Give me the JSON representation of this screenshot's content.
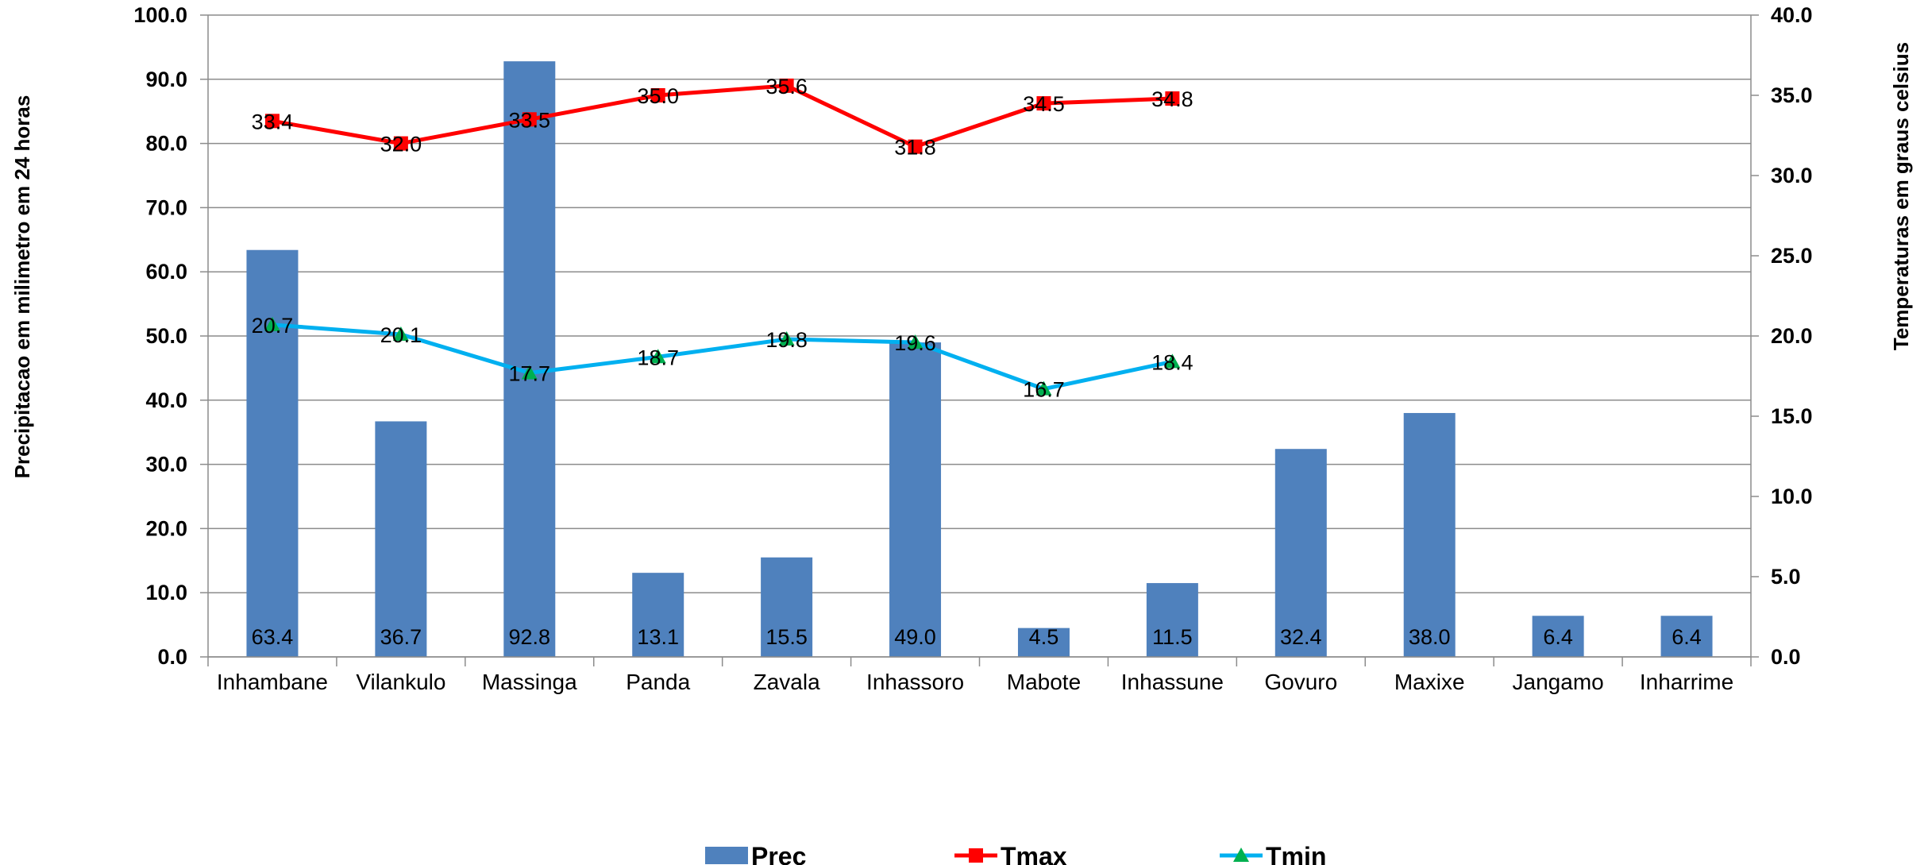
{
  "chart_data": {
    "type": "bar",
    "categories": [
      "Inhambane",
      "Vilankulo",
      "Massinga",
      "Panda",
      "Zavala",
      "Inhassoro",
      "Mabote",
      "Inhassune",
      "Govuro",
      "Maxixe",
      "Jangamo",
      "Inharrime"
    ],
    "series": [
      {
        "name": "Prec",
        "type": "bar",
        "axis": "left",
        "color": "#4F81BD",
        "values": [
          63.4,
          36.7,
          92.8,
          13.1,
          15.5,
          49.0,
          4.5,
          11.5,
          32.4,
          38.0,
          6.4,
          6.4
        ],
        "labels": [
          "63.4",
          "36.7",
          "92.8",
          "13.1",
          "15.5",
          "49.0",
          "4.5",
          "11.5",
          "32.4",
          "38.0",
          "6.4",
          "6.4"
        ]
      },
      {
        "name": "Tmax",
        "type": "line",
        "axis": "right",
        "color": "#FF0000",
        "marker": "square",
        "marker_color": "#FF0000",
        "values": [
          33.4,
          32.0,
          33.5,
          35.0,
          35.6,
          31.8,
          34.5,
          34.8,
          null,
          null,
          null,
          null
        ],
        "labels": [
          "33.4",
          "32.0",
          "33.5",
          "35.0",
          "35.6",
          "31.8",
          "34.5",
          "34.8",
          null,
          null,
          null,
          null
        ]
      },
      {
        "name": "Tmin",
        "type": "line",
        "axis": "right",
        "color": "#00B0F0",
        "marker": "triangle",
        "marker_color": "#00B050",
        "values": [
          20.7,
          20.1,
          17.7,
          18.7,
          19.8,
          19.6,
          16.7,
          18.4,
          null,
          null,
          null,
          null
        ],
        "labels": [
          "20.7",
          "20.1",
          "17.7",
          "18.7",
          "19.8",
          "19.6",
          "16.7",
          "18.4",
          null,
          null,
          null,
          null
        ]
      }
    ],
    "ylabel": "Precipitacao em milimetro em 24 horas",
    "y2label": "Temperaturas em graus celsius",
    "ylim": [
      0,
      100
    ],
    "y2lim": [
      0,
      40
    ],
    "yticks": [
      "0.0",
      "10.0",
      "20.0",
      "30.0",
      "40.0",
      "50.0",
      "60.0",
      "70.0",
      "80.0",
      "90.0",
      "100.0"
    ],
    "y2ticks": [
      "0.0",
      "5.0",
      "10.0",
      "15.0",
      "20.0",
      "25.0",
      "30.0",
      "35.0",
      "40.0"
    ],
    "grid": true,
    "legend_position": "bottom"
  }
}
